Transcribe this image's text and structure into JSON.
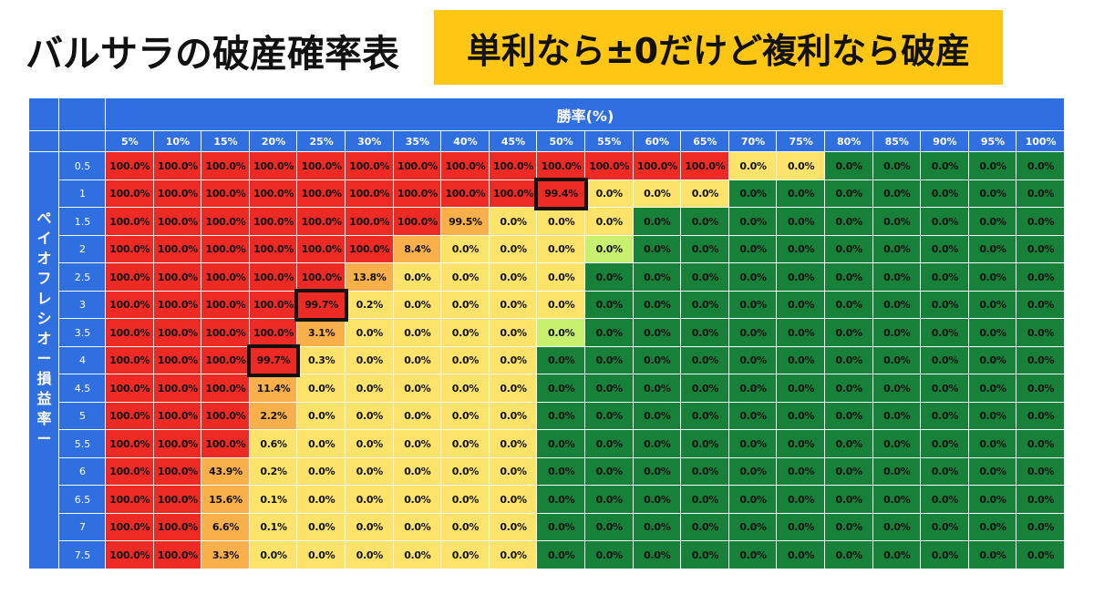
{
  "title": "バルサラの破産確率表",
  "banner": "単利なら±0だけど複利なら破産",
  "chart_data": {
    "type": "heatmap",
    "title": "バルサラの破産確率表",
    "xlabel": "勝率(%)",
    "ylabel": "ペイオフレシオー損益率ー",
    "x": [
      "5%",
      "10%",
      "15%",
      "20%",
      "25%",
      "30%",
      "35%",
      "40%",
      "45%",
      "50%",
      "55%",
      "60%",
      "65%",
      "70%",
      "75%",
      "80%",
      "85%",
      "90%",
      "95%",
      "100%"
    ],
    "y": [
      "0.5",
      "1",
      "1.5",
      "2",
      "2.5",
      "3",
      "3.5",
      "4",
      "4.5",
      "5",
      "5.5",
      "6",
      "6.5",
      "7",
      "7.5"
    ],
    "values": [
      [
        "100.0%",
        "100.0%",
        "100.0%",
        "100.0%",
        "100.0%",
        "100.0%",
        "100.0%",
        "100.0%",
        "100.0%",
        "100.0%",
        "100.0%",
        "100.0%",
        "100.0%",
        "0.0%",
        "0.0%",
        "0.0%",
        "0.0%",
        "0.0%",
        "0.0%",
        "0.0%"
      ],
      [
        "100.0%",
        "100.0%",
        "100.0%",
        "100.0%",
        "100.0%",
        "100.0%",
        "100.0%",
        "100.0%",
        "100.0%",
        "99.4%",
        "0.0%",
        "0.0%",
        "0.0%",
        "0.0%",
        "0.0%",
        "0.0%",
        "0.0%",
        "0.0%",
        "0.0%",
        "0.0%"
      ],
      [
        "100.0%",
        "100.0%",
        "100.0%",
        "100.0%",
        "100.0%",
        "100.0%",
        "100.0%",
        "99.5%",
        "0.0%",
        "0.0%",
        "0.0%",
        "0.0%",
        "0.0%",
        "0.0%",
        "0.0%",
        "0.0%",
        "0.0%",
        "0.0%",
        "0.0%",
        "0.0%"
      ],
      [
        "100.0%",
        "100.0%",
        "100.0%",
        "100.0%",
        "100.0%",
        "100.0%",
        "8.4%",
        "0.0%",
        "0.0%",
        "0.0%",
        "0.0%",
        "0.0%",
        "0.0%",
        "0.0%",
        "0.0%",
        "0.0%",
        "0.0%",
        "0.0%",
        "0.0%",
        "0.0%"
      ],
      [
        "100.0%",
        "100.0%",
        "100.0%",
        "100.0%",
        "100.0%",
        "13.8%",
        "0.0%",
        "0.0%",
        "0.0%",
        "0.0%",
        "0.0%",
        "0.0%",
        "0.0%",
        "0.0%",
        "0.0%",
        "0.0%",
        "0.0%",
        "0.0%",
        "0.0%",
        "0.0%"
      ],
      [
        "100.0%",
        "100.0%",
        "100.0%",
        "100.0%",
        "99.7%",
        "0.2%",
        "0.0%",
        "0.0%",
        "0.0%",
        "0.0%",
        "0.0%",
        "0.0%",
        "0.0%",
        "0.0%",
        "0.0%",
        "0.0%",
        "0.0%",
        "0.0%",
        "0.0%",
        "0.0%"
      ],
      [
        "100.0%",
        "100.0%",
        "100.0%",
        "100.0%",
        "3.1%",
        "0.0%",
        "0.0%",
        "0.0%",
        "0.0%",
        "0.0%",
        "0.0%",
        "0.0%",
        "0.0%",
        "0.0%",
        "0.0%",
        "0.0%",
        "0.0%",
        "0.0%",
        "0.0%",
        "0.0%"
      ],
      [
        "100.0%",
        "100.0%",
        "100.0%",
        "99.7%",
        "0.3%",
        "0.0%",
        "0.0%",
        "0.0%",
        "0.0%",
        "0.0%",
        "0.0%",
        "0.0%",
        "0.0%",
        "0.0%",
        "0.0%",
        "0.0%",
        "0.0%",
        "0.0%",
        "0.0%",
        "0.0%"
      ],
      [
        "100.0%",
        "100.0%",
        "100.0%",
        "11.4%",
        "0.0%",
        "0.0%",
        "0.0%",
        "0.0%",
        "0.0%",
        "0.0%",
        "0.0%",
        "0.0%",
        "0.0%",
        "0.0%",
        "0.0%",
        "0.0%",
        "0.0%",
        "0.0%",
        "0.0%",
        "0.0%"
      ],
      [
        "100.0%",
        "100.0%",
        "100.0%",
        "2.2%",
        "0.0%",
        "0.0%",
        "0.0%",
        "0.0%",
        "0.0%",
        "0.0%",
        "0.0%",
        "0.0%",
        "0.0%",
        "0.0%",
        "0.0%",
        "0.0%",
        "0.0%",
        "0.0%",
        "0.0%",
        "0.0%"
      ],
      [
        "100.0%",
        "100.0%",
        "100.0%",
        "0.6%",
        "0.0%",
        "0.0%",
        "0.0%",
        "0.0%",
        "0.0%",
        "0.0%",
        "0.0%",
        "0.0%",
        "0.0%",
        "0.0%",
        "0.0%",
        "0.0%",
        "0.0%",
        "0.0%",
        "0.0%",
        "0.0%"
      ],
      [
        "100.0%",
        "100.0%",
        "43.9%",
        "0.2%",
        "0.0%",
        "0.0%",
        "0.0%",
        "0.0%",
        "0.0%",
        "0.0%",
        "0.0%",
        "0.0%",
        "0.0%",
        "0.0%",
        "0.0%",
        "0.0%",
        "0.0%",
        "0.0%",
        "0.0%",
        "0.0%"
      ],
      [
        "100.0%",
        "100.0%",
        "15.6%",
        "0.1%",
        "0.0%",
        "0.0%",
        "0.0%",
        "0.0%",
        "0.0%",
        "0.0%",
        "0.0%",
        "0.0%",
        "0.0%",
        "0.0%",
        "0.0%",
        "0.0%",
        "0.0%",
        "0.0%",
        "0.0%",
        "0.0%"
      ],
      [
        "100.0%",
        "100.0%",
        "6.6%",
        "0.1%",
        "0.0%",
        "0.0%",
        "0.0%",
        "0.0%",
        "0.0%",
        "0.0%",
        "0.0%",
        "0.0%",
        "0.0%",
        "0.0%",
        "0.0%",
        "0.0%",
        "0.0%",
        "0.0%",
        "0.0%",
        "0.0%"
      ],
      [
        "100.0%",
        "100.0%",
        "3.3%",
        "0.0%",
        "0.0%",
        "0.0%",
        "0.0%",
        "0.0%",
        "0.0%",
        "0.0%",
        "0.0%",
        "0.0%",
        "0.0%",
        "0.0%",
        "0.0%",
        "0.0%",
        "0.0%",
        "0.0%",
        "0.0%",
        "0.0%"
      ]
    ],
    "cell_colors": [
      [
        "r",
        "r",
        "r",
        "r",
        "r",
        "r",
        "r",
        "r",
        "r",
        "r",
        "r",
        "r",
        "r",
        "y",
        "y",
        "g",
        "g",
        "g",
        "g",
        "g"
      ],
      [
        "r",
        "r",
        "r",
        "r",
        "r",
        "r",
        "r",
        "r",
        "r",
        "r",
        "y",
        "y",
        "y",
        "g",
        "g",
        "g",
        "g",
        "g",
        "g",
        "g"
      ],
      [
        "r",
        "r",
        "r",
        "r",
        "r",
        "r",
        "r",
        "o",
        "y",
        "y",
        "y",
        "g",
        "g",
        "g",
        "g",
        "g",
        "g",
        "g",
        "g",
        "g"
      ],
      [
        "r",
        "r",
        "r",
        "r",
        "r",
        "r",
        "o",
        "y",
        "y",
        "y",
        "l",
        "g",
        "g",
        "g",
        "g",
        "g",
        "g",
        "g",
        "g",
        "g"
      ],
      [
        "r",
        "r",
        "r",
        "r",
        "r",
        "o",
        "y",
        "y",
        "y",
        "y",
        "g",
        "g",
        "g",
        "g",
        "g",
        "g",
        "g",
        "g",
        "g",
        "g"
      ],
      [
        "r",
        "r",
        "r",
        "r",
        "r",
        "y",
        "y",
        "y",
        "y",
        "y",
        "g",
        "g",
        "g",
        "g",
        "g",
        "g",
        "g",
        "g",
        "g",
        "g"
      ],
      [
        "r",
        "r",
        "r",
        "r",
        "o",
        "y",
        "y",
        "y",
        "y",
        "l",
        "g",
        "g",
        "g",
        "g",
        "g",
        "g",
        "g",
        "g",
        "g",
        "g"
      ],
      [
        "r",
        "r",
        "r",
        "r",
        "y",
        "y",
        "y",
        "y",
        "y",
        "g",
        "g",
        "g",
        "g",
        "g",
        "g",
        "g",
        "g",
        "g",
        "g",
        "g"
      ],
      [
        "r",
        "r",
        "r",
        "o",
        "y",
        "y",
        "y",
        "y",
        "y",
        "g",
        "g",
        "g",
        "g",
        "g",
        "g",
        "g",
        "g",
        "g",
        "g",
        "g"
      ],
      [
        "r",
        "r",
        "r",
        "o",
        "y",
        "y",
        "y",
        "y",
        "y",
        "g",
        "g",
        "g",
        "g",
        "g",
        "g",
        "g",
        "g",
        "g",
        "g",
        "g"
      ],
      [
        "r",
        "r",
        "r",
        "y",
        "y",
        "y",
        "y",
        "y",
        "y",
        "g",
        "g",
        "g",
        "g",
        "g",
        "g",
        "g",
        "g",
        "g",
        "g",
        "g"
      ],
      [
        "r",
        "r",
        "o",
        "y",
        "y",
        "y",
        "y",
        "y",
        "y",
        "g",
        "g",
        "g",
        "g",
        "g",
        "g",
        "g",
        "g",
        "g",
        "g",
        "g"
      ],
      [
        "r",
        "r",
        "o",
        "y",
        "y",
        "y",
        "y",
        "y",
        "y",
        "g",
        "g",
        "g",
        "g",
        "g",
        "g",
        "g",
        "g",
        "g",
        "g",
        "g"
      ],
      [
        "r",
        "r",
        "o",
        "y",
        "y",
        "y",
        "y",
        "y",
        "y",
        "g",
        "g",
        "g",
        "g",
        "g",
        "g",
        "g",
        "g",
        "g",
        "g",
        "g"
      ],
      [
        "r",
        "r",
        "o",
        "y",
        "y",
        "y",
        "y",
        "y",
        "y",
        "g",
        "g",
        "g",
        "g",
        "g",
        "g",
        "g",
        "g",
        "g",
        "g",
        "g"
      ]
    ],
    "color_legend": {
      "r": "#ee2a24",
      "o": "#f9b04a",
      "y": "#fde36a",
      "l": "#c8ef6d",
      "g": "#178039"
    },
    "highlighted_cells": [
      {
        "row": 1,
        "col": 9
      },
      {
        "row": 5,
        "col": 4
      },
      {
        "row": 7,
        "col": 3
      }
    ]
  }
}
